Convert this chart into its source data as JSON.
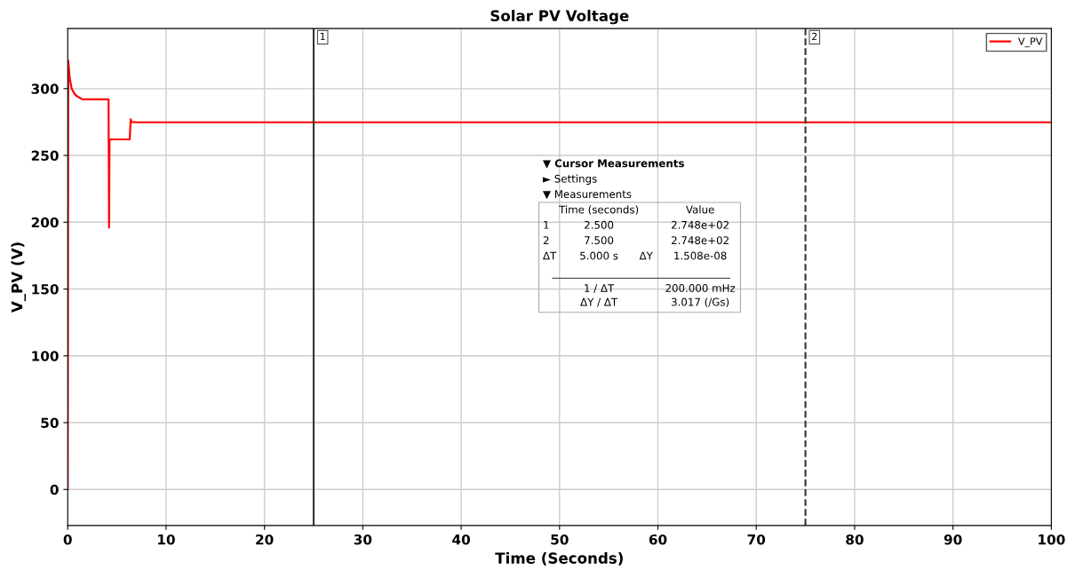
{
  "chart_data": {
    "type": "line",
    "title": "Solar PV Voltage",
    "xlabel": "Time (Seconds)",
    "ylabel": "V_PV (V)",
    "series": [
      {
        "name": "V_PV",
        "color": "#ff0000",
        "x": [
          0,
          0.05,
          0.2,
          0.4,
          0.7,
          1.0,
          1.5,
          2.0,
          3.0,
          4.15,
          4.2,
          4.25,
          4.3,
          5.0,
          6.3,
          6.4,
          6.5,
          7.0,
          8.0,
          10,
          25,
          50,
          75,
          100
        ],
        "values": [
          0,
          321,
          308,
          300,
          296,
          294,
          292,
          292,
          292,
          292,
          196,
          262,
          262,
          262,
          262,
          277,
          275,
          274.8,
          274.8,
          274.8,
          274.8,
          274.8,
          274.8,
          274.8
        ]
      }
    ],
    "xlim": [
      0,
      100
    ],
    "ylim": [
      -27,
      345
    ],
    "xticks": [
      0,
      10,
      20,
      30,
      40,
      50,
      60,
      70,
      80,
      90,
      100
    ],
    "yticks": [
      0,
      50,
      100,
      150,
      200,
      250,
      300
    ],
    "grid": true,
    "legend": "top right",
    "line_style": "solid",
    "marker": "none",
    "ref_lines": [
      {
        "axis": "x",
        "value": 25,
        "color": "#333333",
        "line_style": "solid"
      },
      {
        "axis": "x",
        "value": 75,
        "color": "#333333",
        "line_style": "dashed"
      }
    ],
    "annotations": [
      {
        "text": "1",
        "x": 25,
        "y": 342
      },
      {
        "text": "2",
        "x": 75,
        "y": 342
      },
      "▼ Cursor Measurements",
      "► Settings",
      "▼ Measurements",
      "Time (seconds)",
      "Value",
      "1",
      "2.500",
      "2.748e+02",
      "2",
      "7.500",
      "2.748e+02",
      "ΔT",
      "5.000 s",
      "ΔY",
      "1.508e-08",
      "1 / ΔT",
      "200.000 mHz",
      "ΔY / ΔT",
      "3.017 (/Gs)"
    ]
  }
}
